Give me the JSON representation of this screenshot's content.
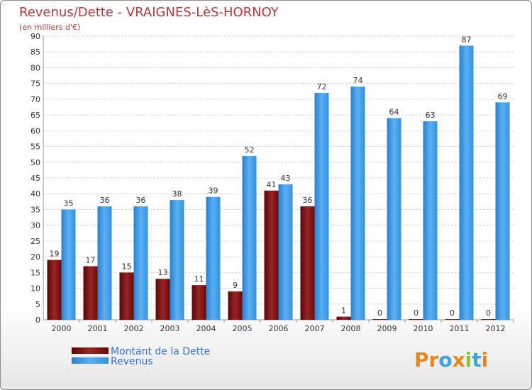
{
  "chart_data": {
    "type": "bar",
    "title": "Revenus/Dette - VRAIGNES-LèS-HORNOY",
    "subtitle": "(en milliers d'€)",
    "categories": [
      "2000",
      "2001",
      "2002",
      "2003",
      "2004",
      "2005",
      "2006",
      "2007",
      "2008",
      "2009",
      "2010",
      "2011",
      "2012"
    ],
    "series": [
      {
        "name": "Montant de la Dette",
        "color": "#7a1010",
        "values": [
          19,
          17,
          15,
          13,
          11,
          9,
          41,
          36,
          1,
          0,
          0,
          0,
          0
        ]
      },
      {
        "name": "Revenus",
        "color": "#3b95e0",
        "values": [
          35,
          36,
          36,
          38,
          39,
          52,
          43,
          72,
          74,
          64,
          63,
          87,
          69
        ]
      }
    ],
    "ylim": [
      0,
      90
    ],
    "ytick_step": 5,
    "yticks": [
      "0",
      "5",
      "10",
      "15",
      "20",
      "25",
      "30",
      "35",
      "40",
      "45",
      "50",
      "55",
      "60",
      "65",
      "70",
      "75",
      "80",
      "85",
      "90"
    ],
    "grid": true,
    "legend_position": "bottom-left"
  },
  "logo": {
    "letters": [
      {
        "ch": "P",
        "color": "#e8861e"
      },
      {
        "ch": "r",
        "color": "#e8861e"
      },
      {
        "ch": "o",
        "color": "#3fa0e0"
      },
      {
        "ch": "x",
        "color": "#e8861e"
      },
      {
        "ch": "i",
        "color": "#8fc23a"
      },
      {
        "ch": "t",
        "color": "#3fa0e0"
      },
      {
        "ch": "i",
        "color": "#e8861e"
      }
    ]
  }
}
